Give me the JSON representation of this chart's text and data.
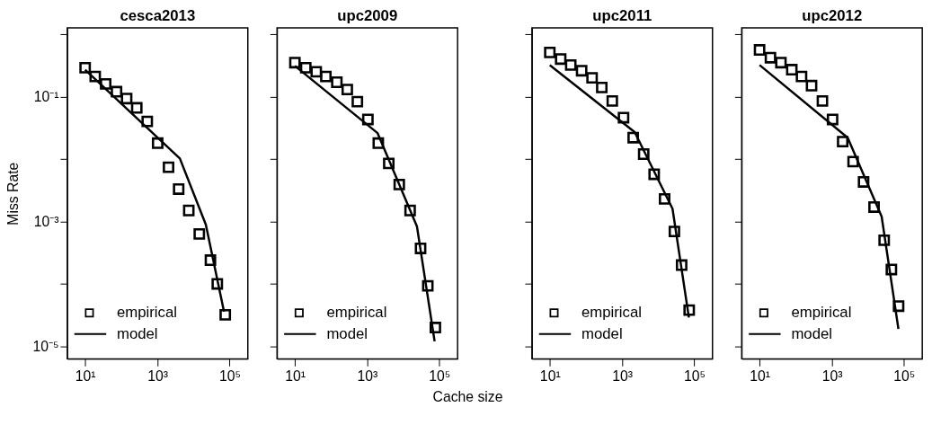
{
  "chart_data": [
    {
      "type": "line",
      "title": "cesca2013",
      "ylabel": "Miss Rate",
      "log": "xy",
      "grid": false,
      "legend": "bottom left",
      "xlim": [
        3.2,
        320000
      ],
      "ylim": [
        6.3e-06,
        1.26
      ],
      "xticks": [
        {
          "value": 10,
          "label": "10¹"
        },
        {
          "value": 1000,
          "label": "10³"
        },
        {
          "value": 100000,
          "label": "10⁵"
        }
      ],
      "yticks": [
        {
          "value": 1,
          "label": null
        },
        {
          "value": 0.1,
          "label": "10⁻¹"
        },
        {
          "value": 0.01,
          "label": null
        },
        {
          "value": 0.001,
          "label": "10⁻³"
        },
        {
          "value": 0.0001,
          "label": null
        },
        {
          "value": 1e-05,
          "label": "10⁻⁵"
        }
      ],
      "series": [
        {
          "name": "empirical",
          "type": "scatter",
          "marker": "square",
          "color": "#000000",
          "x": [
            10,
            19,
            37,
            74,
            141,
            269,
            525,
            1020,
            2040,
            3890,
            7410,
            14500,
            29500,
            45700,
            75900
          ],
          "values": [
            0.29,
            0.21,
            0.16,
            0.12,
            0.093,
            0.066,
            0.04,
            0.018,
            0.0074,
            0.0033,
            0.0015,
            0.00063,
            0.00024,
            0.0001,
            3.2e-05
          ]
        },
        {
          "name": "model",
          "line_style": "solid",
          "color": "#000000",
          "x": [
            10,
            4200,
            22000,
            70000
          ],
          "values": [
            0.27,
            0.0102,
            0.00089,
            3.6e-05
          ]
        }
      ]
    },
    {
      "type": "line",
      "title": "upc2009",
      "xlabel": "Cache size",
      "log": "xy",
      "grid": false,
      "legend": "bottom left",
      "tick_labels": "x",
      "xlim": [
        3.2,
        320000
      ],
      "ylim": [
        6.3e-06,
        1.26
      ],
      "xticks": [
        {
          "value": 10,
          "label": "10¹"
        },
        {
          "value": 1000,
          "label": "10³"
        },
        {
          "value": 100000,
          "label": "10⁵"
        }
      ],
      "yticks": [
        {
          "value": 1,
          "label": null
        },
        {
          "value": 0.1,
          "label": null
        },
        {
          "value": 0.01,
          "label": null
        },
        {
          "value": 0.001,
          "label": null
        },
        {
          "value": 0.0001,
          "label": null
        },
        {
          "value": 1e-05,
          "label": null
        }
      ],
      "series": [
        {
          "name": "empirical",
          "type": "scatter",
          "marker": "square",
          "color": "#000000",
          "x": [
            10,
            20,
            39,
            72,
            145,
            282,
            537,
            1050,
            2040,
            3980,
            7760,
            15500,
            30200,
            47900,
            77600
          ],
          "values": [
            0.35,
            0.29,
            0.25,
            0.21,
            0.17,
            0.13,
            0.083,
            0.043,
            0.018,
            0.0085,
            0.0039,
            0.0015,
            0.00037,
            9.3e-05,
            2e-05
          ]
        },
        {
          "name": "model",
          "line_style": "solid",
          "color": "#000000",
          "x": [
            10,
            1950,
            24000,
            74000
          ],
          "values": [
            0.31,
            0.026,
            0.00083,
            1.2e-05
          ]
        }
      ]
    },
    {
      "type": "line",
      "title": "upc2011",
      "log": "xy",
      "grid": false,
      "legend": "bottom left",
      "tick_labels": "x",
      "xlim": [
        3.2,
        320000
      ],
      "ylim": [
        6.3e-06,
        1.26
      ],
      "xticks": [
        {
          "value": 10,
          "label": "10¹"
        },
        {
          "value": 1000,
          "label": "10³"
        },
        {
          "value": 100000,
          "label": "10⁵"
        }
      ],
      "yticks": [
        {
          "value": 1,
          "label": null
        },
        {
          "value": 0.1,
          "label": null
        },
        {
          "value": 0.01,
          "label": null
        },
        {
          "value": 0.001,
          "label": null
        },
        {
          "value": 0.0001,
          "label": null
        },
        {
          "value": 1e-05,
          "label": null
        }
      ],
      "series": [
        {
          "name": "empirical",
          "type": "scatter",
          "marker": "square",
          "color": "#000000",
          "x": [
            10,
            20,
            38,
            76,
            148,
            275,
            537,
            1100,
            2040,
            3980,
            7760,
            15100,
            28200,
            44700,
            72400
          ],
          "values": [
            0.51,
            0.4,
            0.32,
            0.26,
            0.2,
            0.14,
            0.085,
            0.046,
            0.022,
            0.012,
            0.0057,
            0.0023,
            0.00069,
            0.0002,
            3.8e-05
          ]
        },
        {
          "name": "model",
          "line_style": "solid",
          "color": "#000000",
          "x": [
            10,
            2240,
            25000,
            71000
          ],
          "values": [
            0.32,
            0.027,
            0.0016,
            2.9e-05
          ]
        }
      ]
    },
    {
      "type": "line",
      "title": "upc2012",
      "log": "xy",
      "grid": false,
      "legend": "bottom left",
      "tick_labels": "x",
      "xlim": [
        3.2,
        320000
      ],
      "ylim": [
        6.3e-06,
        1.26
      ],
      "xticks": [
        {
          "value": 10,
          "label": "10¹"
        },
        {
          "value": 1000,
          "label": "10³"
        },
        {
          "value": 100000,
          "label": "10⁵"
        }
      ],
      "yticks": [
        {
          "value": 1,
          "label": null
        },
        {
          "value": 0.1,
          "label": null
        },
        {
          "value": 0.01,
          "label": null
        },
        {
          "value": 0.001,
          "label": null
        },
        {
          "value": 0.0001,
          "label": null
        },
        {
          "value": 1e-05,
          "label": null
        }
      ],
      "series": [
        {
          "name": "empirical",
          "type": "scatter",
          "marker": "square",
          "color": "#000000",
          "x": [
            10,
            20,
            39,
            78,
            145,
            275,
            550,
            1050,
            2000,
            3890,
            7590,
            14800,
            28200,
            44700,
            70800
          ],
          "values": [
            0.56,
            0.42,
            0.35,
            0.27,
            0.21,
            0.15,
            0.085,
            0.043,
            0.019,
            0.0091,
            0.0043,
            0.0017,
            0.0005,
            0.00017,
            4.4e-05
          ]
        },
        {
          "name": "model",
          "line_style": "solid",
          "color": "#000000",
          "x": [
            10,
            2750,
            24000,
            70000
          ],
          "values": [
            0.32,
            0.022,
            0.0012,
            1.9e-05
          ]
        }
      ]
    }
  ]
}
